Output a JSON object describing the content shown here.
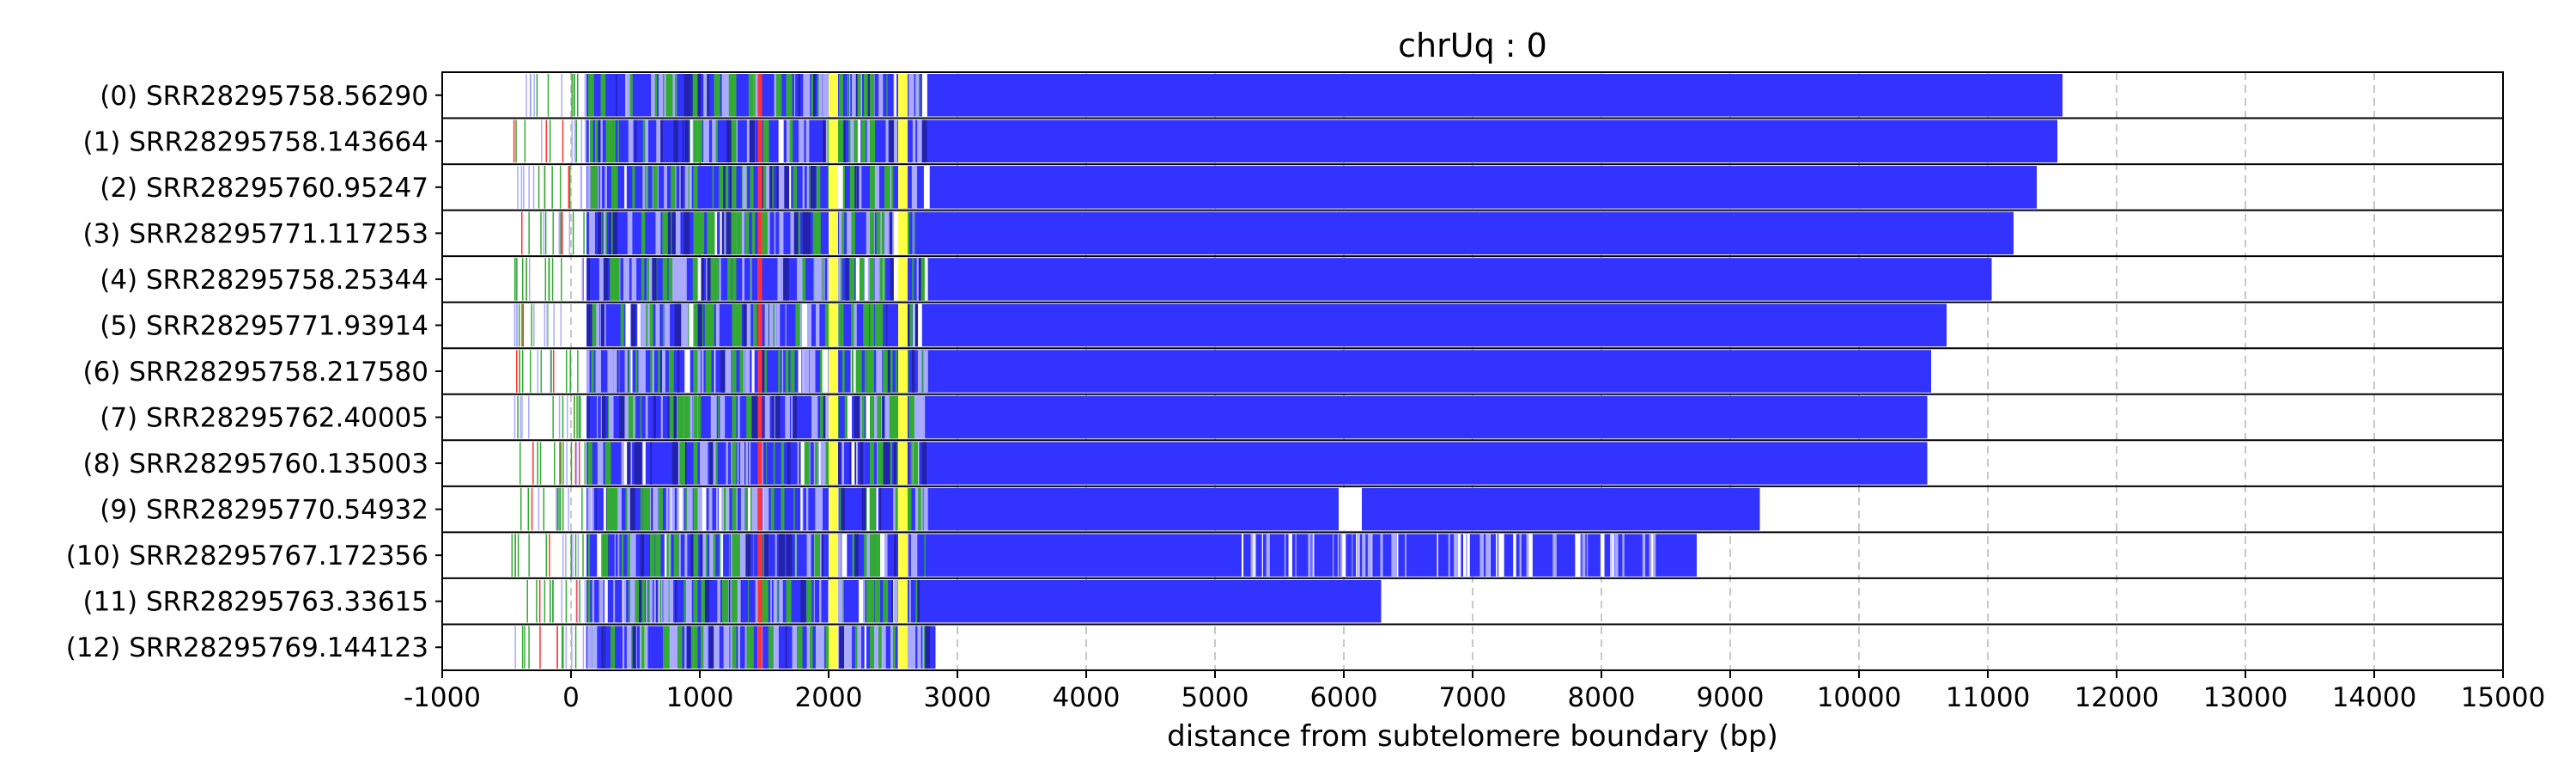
{
  "chart_data": {
    "type": "bar",
    "title": "chrUq : 0",
    "xlabel": "distance from subtelomere boundary (bp)",
    "ylabel": "",
    "xlim": [
      -1000,
      15000
    ],
    "xticks": [
      -1000,
      0,
      1000,
      2000,
      3000,
      4000,
      5000,
      6000,
      7000,
      8000,
      9000,
      10000,
      11000,
      12000,
      13000,
      14000,
      15000
    ],
    "grid": "x-dashed",
    "colors": {
      "telomere_repeat": "#3333ff",
      "variant_green": "#33aa33",
      "variant_yellow": "#ffff44",
      "variant_red": "#ff3333",
      "variant_light": "#aaaaff",
      "grid": "#c8c8c8"
    },
    "reads": [
      {
        "label": "(0) SRR28295758.56290",
        "end": 11580
      },
      {
        "label": "(1) SRR28295758.143664",
        "end": 11540
      },
      {
        "label": "(2) SRR28295760.95247",
        "end": 11380
      },
      {
        "label": "(3) SRR28295771.117253",
        "end": 11200
      },
      {
        "label": "(4) SRR28295758.25344",
        "end": 11030
      },
      {
        "label": "(5) SRR28295771.93914",
        "end": 10680
      },
      {
        "label": "(6) SRR28295758.217580",
        "end": 10560
      },
      {
        "label": "(7) SRR28295762.40005",
        "end": 10530
      },
      {
        "label": "(8) SRR28295760.135003",
        "end": 10530
      },
      {
        "label": "(9) SRR28295770.54932",
        "end": 9230,
        "gaps": [
          [
            5960,
            6140
          ]
        ]
      },
      {
        "label": "(10) SRR28295767.172356",
        "end": 8740
      },
      {
        "label": "(11) SRR28295763.33615",
        "end": 6290
      },
      {
        "label": "(12) SRR28295769.144123",
        "end": 2830
      }
    ],
    "features": [
      {
        "color": "variant_yellow",
        "at": 2000
      },
      {
        "color": "variant_yellow",
        "at": 2540
      },
      {
        "color": "variant_red",
        "at": 1450
      },
      {
        "color": "variant_green",
        "at": 950
      },
      {
        "color": "variant_green",
        "at": 1250
      },
      {
        "color": "variant_green",
        "at": 2320
      }
    ]
  }
}
